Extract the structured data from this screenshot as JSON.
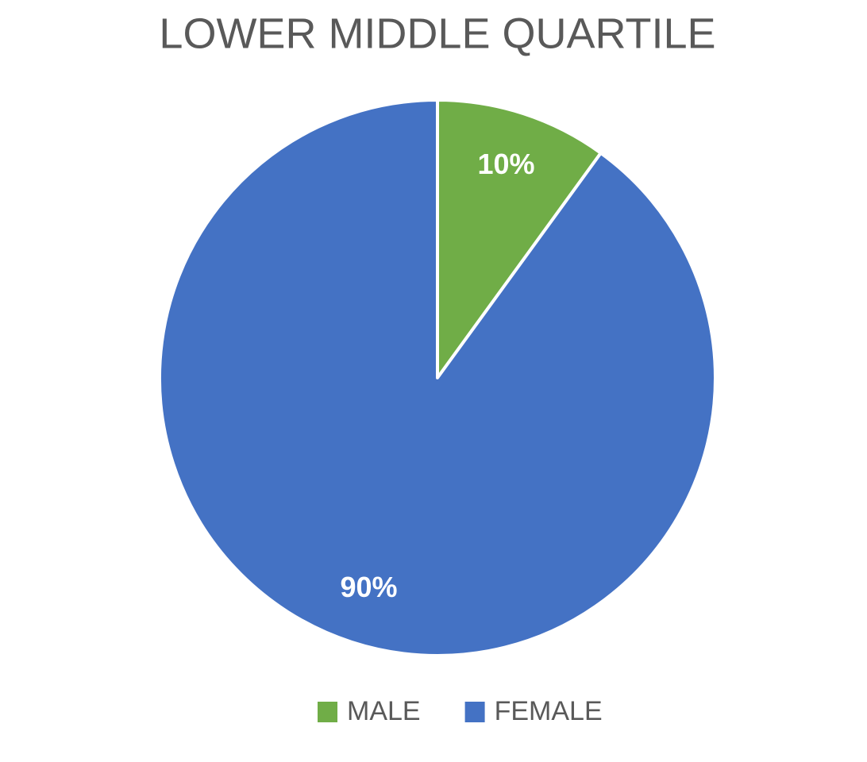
{
  "chart_data": {
    "type": "pie",
    "title": "LOWER MIDDLE QUARTILE",
    "categories": [
      "MALE",
      "FEMALE"
    ],
    "values": [
      10,
      90
    ],
    "value_labels": [
      "10%",
      "90%"
    ],
    "colors": [
      "#70ad47",
      "#4472c4"
    ],
    "legend": "bottom"
  }
}
